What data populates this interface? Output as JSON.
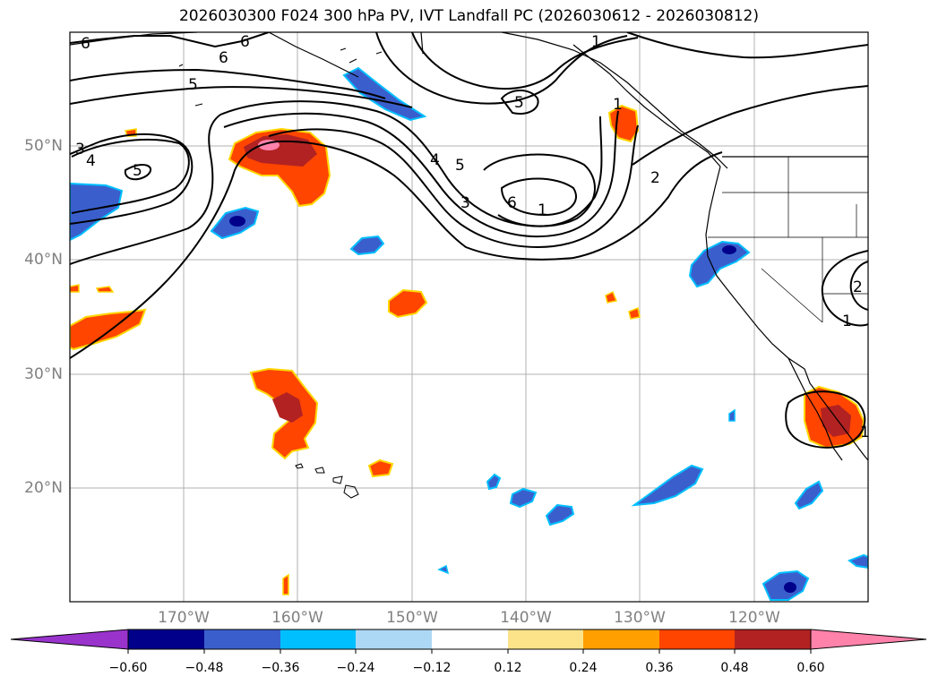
{
  "title": "2026030300 F024 300 hPa PV, IVT Landfall PC (2026030612 - 2026030812)",
  "lat_labels": [
    "50°N",
    "40°N",
    "30°N",
    "20°N"
  ],
  "lon_labels": [
    "170°W",
    "160°W",
    "150°W",
    "140°W",
    "130°W",
    "120°W"
  ],
  "colorbar": {
    "tick_labels": [
      "−0.60",
      "−0.48",
      "−0.36",
      "−0.24",
      "−0.12",
      "0.12",
      "0.24",
      "0.36",
      "0.48",
      "0.60"
    ],
    "colors": [
      "#9933cc",
      "#00008b",
      "#3a5fcd",
      "#00bfff",
      "#add8f5",
      "#ffffff",
      "#fce38a",
      "#ff9f00",
      "#ff4500",
      "#b22222",
      "#ff82ab"
    ]
  },
  "contour_labels": [
    "6",
    "6",
    "6",
    "5",
    "4",
    "3",
    "5",
    "1",
    "5",
    "4",
    "5",
    "3",
    "6",
    "1",
    "2",
    "1",
    "1",
    "1",
    "2"
  ],
  "map_extent": {
    "lon": [
      -180,
      -110
    ],
    "lat": [
      10,
      60
    ]
  }
}
